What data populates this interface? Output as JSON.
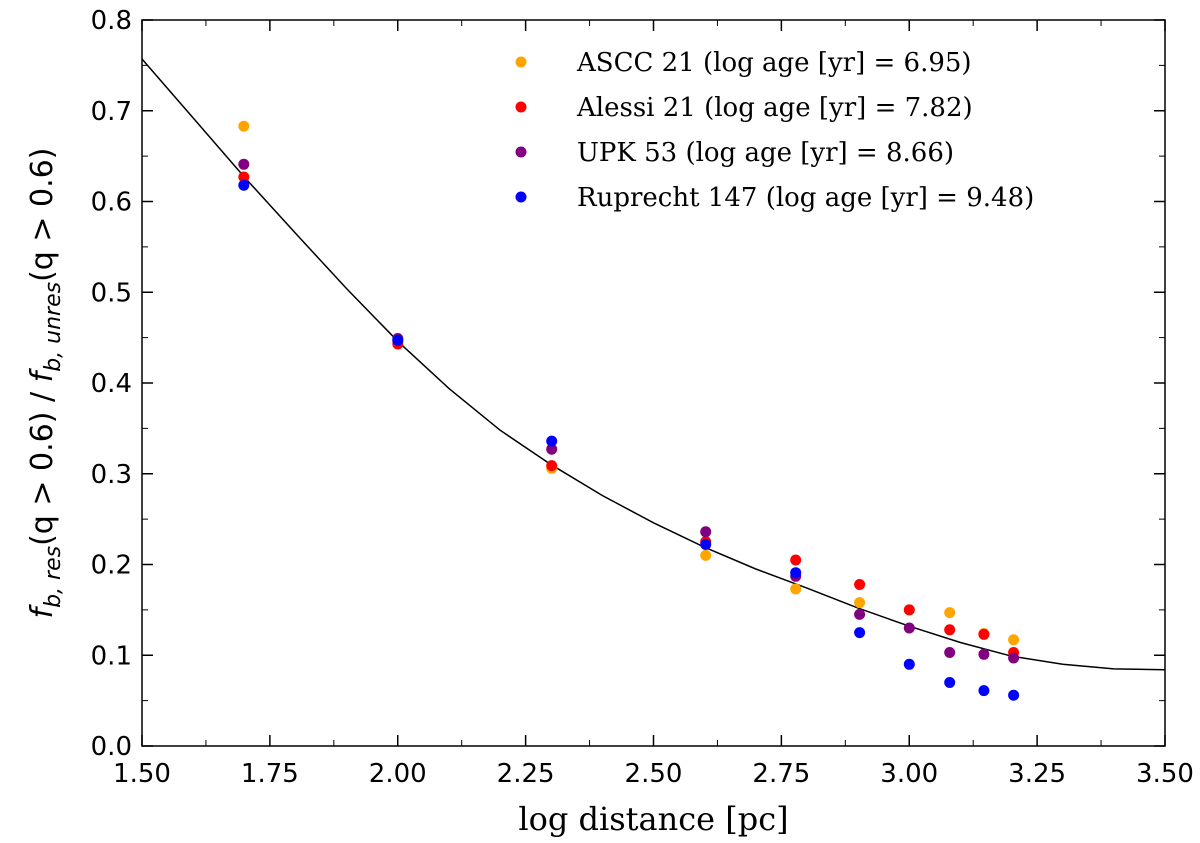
{
  "chart_data": {
    "type": "scatter",
    "xlabel": "log distance [pc]",
    "ylabel": {
      "f1": "f",
      "f1_sub": "b, res",
      "q1": "(q > 0.6) / ",
      "f2": "f",
      "f2_sub": "b, unres",
      "q2": "(q > 0.6)"
    },
    "xlim": [
      1.5,
      3.5
    ],
    "ylim": [
      0.0,
      0.8
    ],
    "x_ticks": [
      1.5,
      1.75,
      2.0,
      2.25,
      2.5,
      2.75,
      3.0,
      3.25,
      3.5
    ],
    "x_tick_labels": [
      "1.50",
      "1.75",
      "2.00",
      "2.25",
      "2.50",
      "2.75",
      "3.00",
      "3.25",
      "3.50"
    ],
    "x_minor_ticks": [
      1.625,
      1.875,
      2.125,
      2.375,
      2.625,
      2.875,
      3.125,
      3.375
    ],
    "y_ticks": [
      0.0,
      0.1,
      0.2,
      0.3,
      0.4,
      0.5,
      0.6,
      0.7,
      0.8
    ],
    "y_tick_labels": [
      "0.0",
      "0.1",
      "0.2",
      "0.3",
      "0.4",
      "0.5",
      "0.6",
      "0.7",
      "0.8"
    ],
    "y_minor_ticks": [
      0.05,
      0.15,
      0.25,
      0.35,
      0.45,
      0.55,
      0.65,
      0.75
    ],
    "grid": false,
    "legend_position": "top-right",
    "x": [
      1.699,
      2.0,
      2.301,
      2.602,
      2.778,
      2.903,
      3.0,
      3.079,
      3.146,
      3.204
    ],
    "series": [
      {
        "name": "ASCC 21 (log age [yr] = 6.95)",
        "color": "#FFA500",
        "values": [
          0.683,
          0.446,
          0.306,
          0.21,
          0.173,
          0.158,
          0.15,
          0.147,
          0.124,
          0.117
        ]
      },
      {
        "name": "Alessi 21 (log age [yr] = 7.82)",
        "color": "#FF0000",
        "values": [
          0.627,
          0.443,
          0.309,
          0.225,
          0.205,
          0.178,
          0.15,
          0.128,
          0.123,
          0.103
        ]
      },
      {
        "name": "UPK 53 (log age [yr] = 8.66)",
        "color": "#800080",
        "values": [
          0.641,
          0.449,
          0.327,
          0.236,
          0.187,
          0.145,
          0.13,
          0.103,
          0.101,
          0.097
        ]
      },
      {
        "name": "Ruprecht 147 (log age [yr] = 9.48)",
        "color": "#0000FF",
        "values": [
          0.618,
          0.447,
          0.336,
          0.222,
          0.191,
          0.125,
          0.09,
          0.07,
          0.061,
          0.056
        ]
      }
    ],
    "fit_curve": {
      "color": "#000000",
      "x": [
        1.5,
        1.6,
        1.7,
        1.8,
        1.9,
        2.0,
        2.1,
        2.2,
        2.3,
        2.4,
        2.5,
        2.6,
        2.7,
        2.8,
        2.9,
        3.0,
        3.1,
        3.2,
        3.3,
        3.4,
        3.5
      ],
      "y": [
        0.757,
        0.692,
        0.627,
        0.565,
        0.504,
        0.446,
        0.394,
        0.348,
        0.31,
        0.276,
        0.246,
        0.219,
        0.195,
        0.174,
        0.152,
        0.132,
        0.114,
        0.099,
        0.09,
        0.085,
        0.084
      ]
    }
  }
}
